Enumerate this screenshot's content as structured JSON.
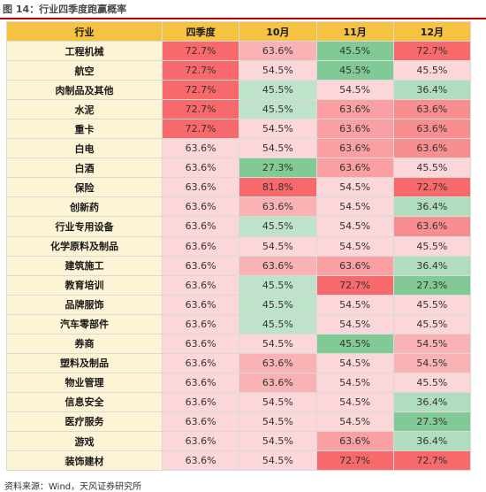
{
  "figure": {
    "title": "图 14：行业四季度跑赢概率",
    "source": "资料来源：Wind，天风证券研究所"
  },
  "colors": {
    "header": "#f5c242",
    "industry_cell": "#fdf3d5",
    "scale_high": "#f8696b",
    "scale_mid": "#fcfcff",
    "scale_low": "#63be7b",
    "title_rule": "#c00000"
  },
  "chart_data": {
    "type": "table",
    "columns": [
      "行业",
      "四季度",
      "10月",
      "11月",
      "12月"
    ],
    "rows": [
      {
        "industry": "工程机械",
        "values": [
          "72.7%",
          "63.6%",
          "45.5%",
          "72.7%"
        ]
      },
      {
        "industry": "航空",
        "values": [
          "72.7%",
          "54.5%",
          "45.5%",
          "45.5%"
        ]
      },
      {
        "industry": "肉制品及其他",
        "values": [
          "72.7%",
          "45.5%",
          "54.5%",
          "36.4%"
        ]
      },
      {
        "industry": "水泥",
        "values": [
          "72.7%",
          "45.5%",
          "63.6%",
          "63.6%"
        ]
      },
      {
        "industry": "重卡",
        "values": [
          "72.7%",
          "54.5%",
          "63.6%",
          "63.6%"
        ]
      },
      {
        "industry": "白电",
        "values": [
          "63.6%",
          "54.5%",
          "63.6%",
          "63.6%"
        ]
      },
      {
        "industry": "白酒",
        "values": [
          "63.6%",
          "27.3%",
          "63.6%",
          "45.5%"
        ]
      },
      {
        "industry": "保险",
        "values": [
          "63.6%",
          "81.8%",
          "54.5%",
          "72.7%"
        ]
      },
      {
        "industry": "创新药",
        "values": [
          "63.6%",
          "63.6%",
          "54.5%",
          "36.4%"
        ]
      },
      {
        "industry": "行业专用设备",
        "values": [
          "63.6%",
          "45.5%",
          "54.5%",
          "63.6%"
        ]
      },
      {
        "industry": "化学原料及制品",
        "values": [
          "63.6%",
          "54.5%",
          "54.5%",
          "45.5%"
        ]
      },
      {
        "industry": "建筑施工",
        "values": [
          "63.6%",
          "63.6%",
          "63.6%",
          "36.4%"
        ]
      },
      {
        "industry": "教育培训",
        "values": [
          "63.6%",
          "45.5%",
          "72.7%",
          "27.3%"
        ]
      },
      {
        "industry": "品牌服饰",
        "values": [
          "63.6%",
          "45.5%",
          "54.5%",
          "45.5%"
        ]
      },
      {
        "industry": "汽车零部件",
        "values": [
          "63.6%",
          "45.5%",
          "54.5%",
          "45.5%"
        ]
      },
      {
        "industry": "券商",
        "values": [
          "63.6%",
          "54.5%",
          "45.5%",
          "54.5%"
        ]
      },
      {
        "industry": "塑料及制品",
        "values": [
          "63.6%",
          "63.6%",
          "54.5%",
          "54.5%"
        ]
      },
      {
        "industry": "物业管理",
        "values": [
          "63.6%",
          "63.6%",
          "54.5%",
          "45.5%"
        ]
      },
      {
        "industry": "信息安全",
        "values": [
          "63.6%",
          "54.5%",
          "54.5%",
          "36.4%"
        ]
      },
      {
        "industry": "医疗服务",
        "values": [
          "63.6%",
          "54.5%",
          "54.5%",
          "27.3%"
        ]
      },
      {
        "industry": "游戏",
        "values": [
          "63.6%",
          "54.5%",
          "63.6%",
          "36.4%"
        ]
      },
      {
        "industry": "装饰建材",
        "values": [
          "63.6%",
          "54.5%",
          "72.7%",
          "72.7%"
        ]
      }
    ]
  }
}
